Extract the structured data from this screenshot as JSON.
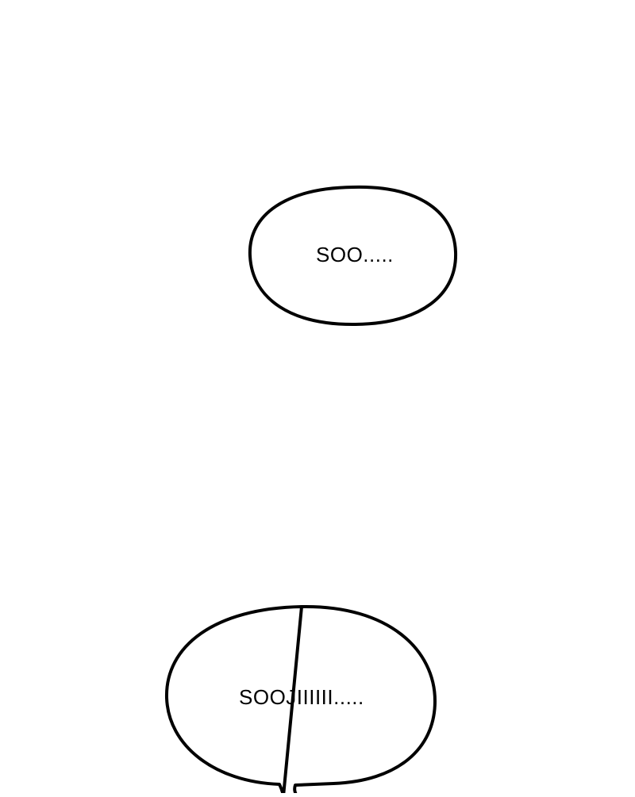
{
  "panel": {
    "background": "#ffffff",
    "ink": "#000000"
  },
  "bubbles": [
    {
      "text": "SOO....."
    },
    {
      "text": "SOOJIIIIII....."
    }
  ]
}
